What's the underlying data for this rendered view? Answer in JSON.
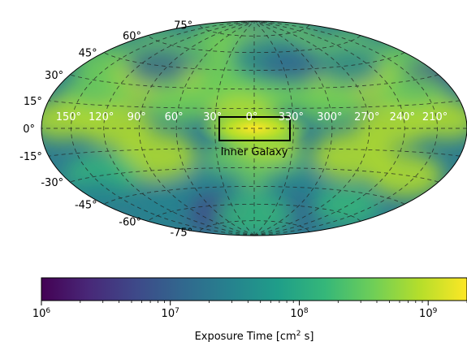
{
  "chart_data": {
    "type": "heatmap",
    "projection": "Aitoff/Hammer (all-sky)",
    "title": "",
    "grid": true,
    "longitude_labels": [
      "150°",
      "120°",
      "90°",
      "60°",
      "30°",
      "0°",
      "330°",
      "300°",
      "270°",
      "240°",
      "210°"
    ],
    "latitude_labels_left": [
      "75°",
      "60°",
      "45°",
      "30°",
      "15°",
      "0°",
      "-15°",
      "-30°",
      "-45°",
      "-60°",
      "-75°"
    ],
    "annotation": {
      "label": "Inner Galaxy",
      "box_lon": [
        30,
        -30
      ],
      "box_lat": [
        -10,
        10
      ]
    },
    "colorbar": {
      "label": "Exposure Time [cm² s]",
      "label_main": "Exposure Time [cm",
      "label_sup": "2",
      "label_end": " s]",
      "scale": "log",
      "range": [
        1000000,
        2000000000
      ],
      "tick_labels": [
        {
          "base": "10",
          "exp": "6",
          "value": 1000000
        },
        {
          "base": "10",
          "exp": "7",
          "value": 10000000
        },
        {
          "base": "10",
          "exp": "8",
          "value": 100000000
        },
        {
          "base": "10",
          "exp": "9",
          "value": 1000000000
        }
      ],
      "colormap": "viridis",
      "colors": [
        "#440154",
        "#482878",
        "#3e4989",
        "#31688e",
        "#26828e",
        "#1f9e89",
        "#35b779",
        "#6ece58",
        "#b5de2b",
        "#fde725"
      ]
    }
  }
}
